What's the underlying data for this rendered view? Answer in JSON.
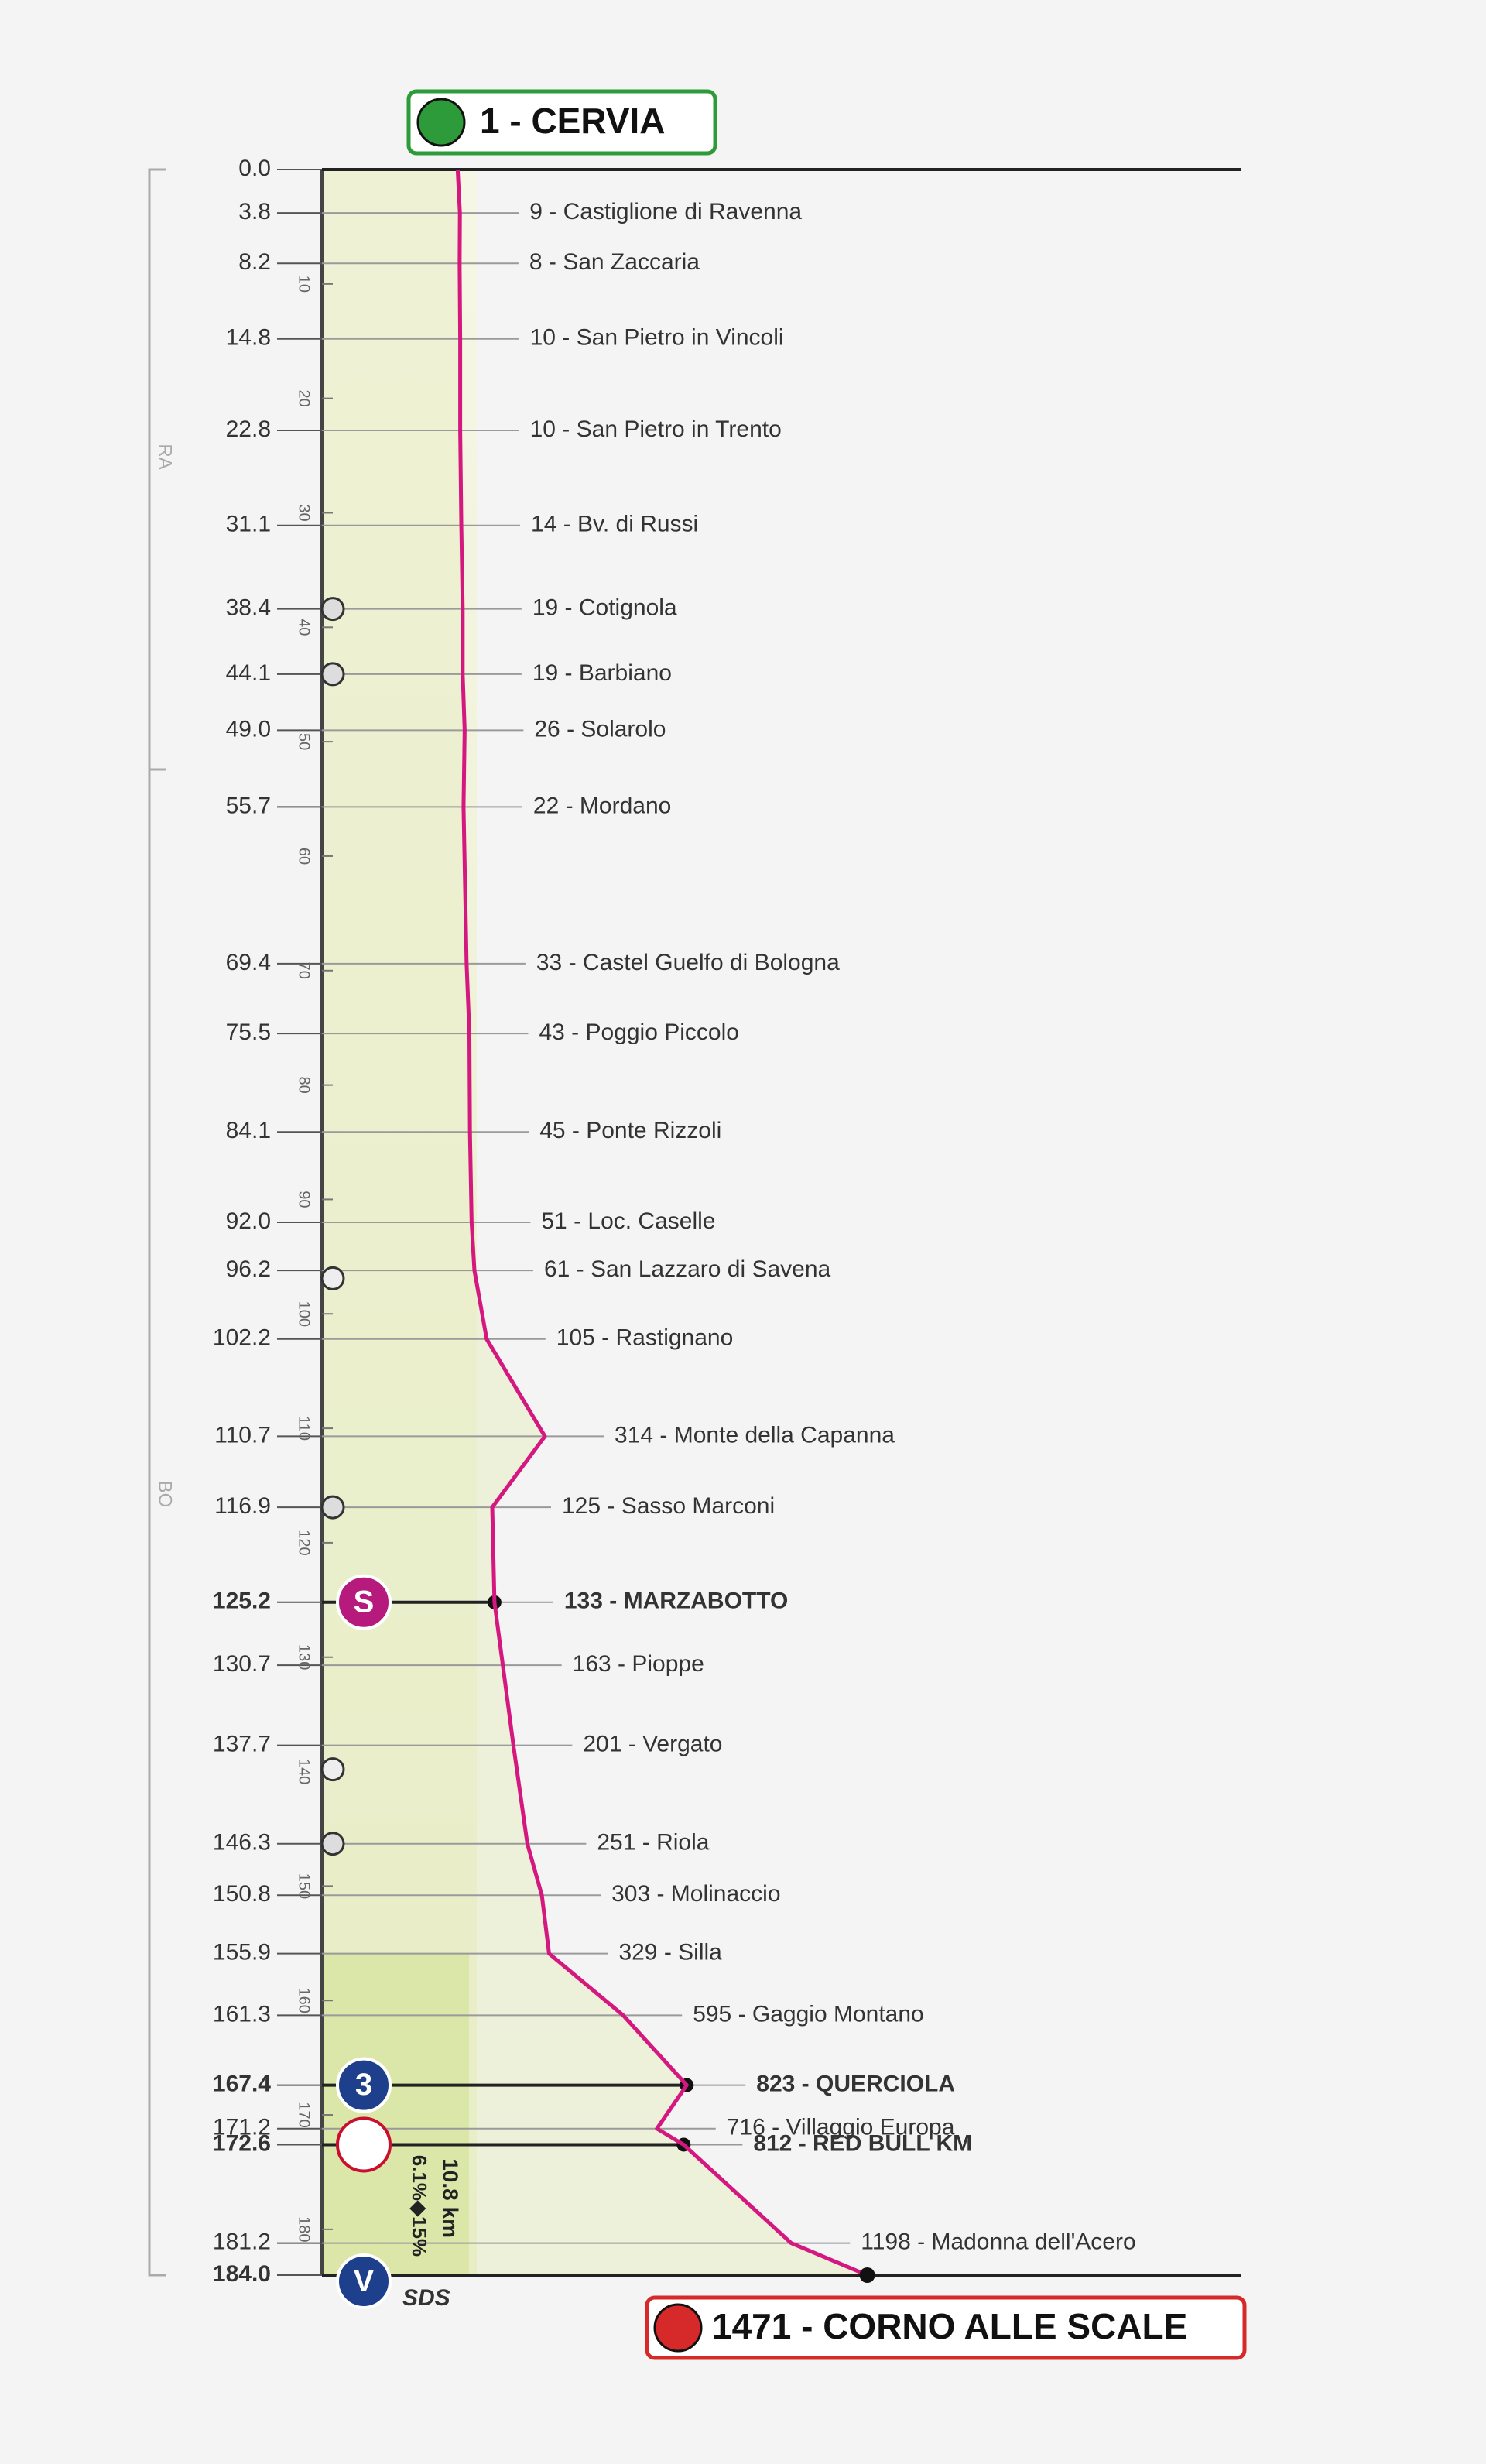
{
  "chart_data": {
    "type": "profile",
    "ylim": [
      0,
      184
    ],
    "xlim": [
      0,
      1600
    ],
    "scale_ticks": [
      10,
      20,
      30,
      40,
      50,
      60,
      70,
      80,
      90,
      100,
      110,
      120,
      130,
      140,
      150,
      160,
      170,
      180
    ],
    "line_color": "#d4187f",
    "waypoints": [
      {
        "km": {
          "value": 0,
          "label": "0.0"
        },
        "altitude": 1,
        "label": "1 - CERVIA"
      },
      {
        "km": {
          "value": 3.8,
          "label": "3.8"
        },
        "altitude": 9,
        "label": "9 - Castiglione di Ravenna"
      },
      {
        "km": {
          "value": 8.2,
          "label": "8.2"
        },
        "altitude": 8,
        "label": "8 - San Zaccaria"
      },
      {
        "km": {
          "value": 14.8,
          "label": "14.8"
        },
        "altitude": 10,
        "label": "10 - San Pietro in Vincoli"
      },
      {
        "km": {
          "value": 22.8,
          "label": "22.8"
        },
        "altitude": 10,
        "label": "10 - San Pietro in Trento"
      },
      {
        "km": {
          "value": 31.1,
          "label": "31.1"
        },
        "altitude": 14,
        "label": "14 - Bv. di Russi"
      },
      {
        "km": {
          "value": 38.4,
          "label": "38.4"
        },
        "altitude": 19,
        "label": "19 - Cotignola"
      },
      {
        "km": {
          "value": 44.1,
          "label": "44.1"
        },
        "altitude": 19,
        "label": "19 - Barbiano"
      },
      {
        "km": {
          "value": 49,
          "label": "49.0"
        },
        "altitude": 26,
        "label": "26 - Solarolo"
      },
      {
        "km": {
          "value": 55.7,
          "label": "55.7"
        },
        "altitude": 22,
        "label": "22 - Mordano"
      },
      {
        "km": {
          "value": 69.4,
          "label": "69.4"
        },
        "altitude": 33,
        "label": "33 - Castel Guelfo di Bologna"
      },
      {
        "km": {
          "value": 75.5,
          "label": "75.5"
        },
        "altitude": 43,
        "label": "43 - Poggio Piccolo"
      },
      {
        "km": {
          "value": 84.1,
          "label": "84.1"
        },
        "altitude": 45,
        "label": "45 - Ponte Rizzoli"
      },
      {
        "km": {
          "value": 92,
          "label": "92.0"
        },
        "altitude": 51,
        "label": "51 - Loc. Caselle"
      },
      {
        "km": {
          "value": 96.2,
          "label": "96.2"
        },
        "altitude": 61,
        "label": "61 - San Lazzaro di Savena"
      },
      {
        "km": {
          "value": 102.2,
          "label": "102.2"
        },
        "altitude": 105,
        "label": "105 - Rastignano"
      },
      {
        "km": {
          "value": 110.7,
          "label": "110.7"
        },
        "altitude": 314,
        "label": "314 - Monte della Capanna"
      },
      {
        "km": {
          "value": 116.9,
          "label": "116.9"
        },
        "altitude": 125,
        "label": "125 - Sasso Marconi"
      },
      {
        "km": {
          "value": 125.2,
          "label": "125.2"
        },
        "altitude": 133,
        "label": "133 - MARZABOTTO"
      },
      {
        "km": {
          "value": 130.7,
          "label": "130.7"
        },
        "altitude": 163,
        "label": "163 - Pioppe"
      },
      {
        "km": {
          "value": 137.7,
          "label": "137.7"
        },
        "altitude": 201,
        "label": "201 - Vergato"
      },
      {
        "km": {
          "value": 146.3,
          "label": "146.3"
        },
        "altitude": 251,
        "label": "251 - Riola"
      },
      {
        "km": {
          "value": 150.8,
          "label": "150.8"
        },
        "altitude": 303,
        "label": "303 - Molinaccio"
      },
      {
        "km": {
          "value": 155.9,
          "label": "155.9"
        },
        "altitude": 329,
        "label": "329 - Silla"
      },
      {
        "km": {
          "value": 161.3,
          "label": "161.3"
        },
        "altitude": 595,
        "label": "595 - Gaggio Montano"
      },
      {
        "km": {
          "value": 167.4,
          "label": "167.4"
        },
        "altitude": 823,
        "label": "823 - QUERCIOLA"
      },
      {
        "km": {
          "value": 171.2,
          "label": "171.2"
        },
        "altitude": 716,
        "label": "716 - Villaggio Europa"
      },
      {
        "km": {
          "value": 172.6,
          "label": "172.6"
        },
        "altitude": 812,
        "label": "812 - RED BULL KM"
      },
      {
        "km": {
          "value": 181.2,
          "label": "181.2"
        },
        "altitude": 1198,
        "label": "1198 - Madonna dell'Acero"
      },
      {
        "km": {
          "value": 184,
          "label": "184.0"
        },
        "altitude": 1471,
        "label": "1471 - CORNO ALLE SCALE"
      }
    ],
    "provinces": [
      "RA",
      "BO"
    ],
    "icons": {
      "sprint": "S",
      "climb": "3",
      "finish": "V"
    },
    "annotations": [
      "SDS",
      "10.8 km",
      "6.1%◆15%"
    ]
  }
}
